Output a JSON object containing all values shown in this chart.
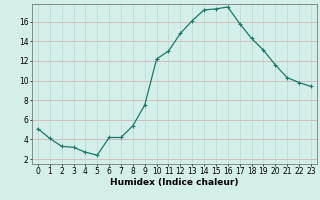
{
  "x": [
    0,
    1,
    2,
    3,
    4,
    5,
    6,
    7,
    8,
    9,
    10,
    11,
    12,
    13,
    14,
    15,
    16,
    17,
    18,
    19,
    20,
    21,
    22,
    23
  ],
  "y": [
    5.1,
    4.1,
    3.3,
    3.2,
    2.7,
    2.4,
    4.2,
    4.2,
    5.4,
    7.5,
    12.2,
    13.0,
    14.8,
    16.1,
    17.2,
    17.3,
    17.5,
    15.8,
    14.3,
    13.1,
    11.6,
    10.3,
    9.8,
    9.4
  ],
  "line_color": "#1a7a6a",
  "marker": "+",
  "markersize": 3,
  "linewidth": 0.9,
  "bg_color": "#d4eeea",
  "grid_color_h": "#d4a8a8",
  "grid_color_v": "#b8d8d4",
  "xlabel": "Humidex (Indice chaleur)",
  "xlabel_fontsize": 6.5,
  "tick_fontsize": 5.5,
  "xlim": [
    -0.5,
    23.5
  ],
  "ylim": [
    1.5,
    17.8
  ],
  "yticks": [
    2,
    4,
    6,
    8,
    10,
    12,
    14,
    16
  ],
  "xticks": [
    0,
    1,
    2,
    3,
    4,
    5,
    6,
    7,
    8,
    9,
    10,
    11,
    12,
    13,
    14,
    15,
    16,
    17,
    18,
    19,
    20,
    21,
    22,
    23
  ]
}
